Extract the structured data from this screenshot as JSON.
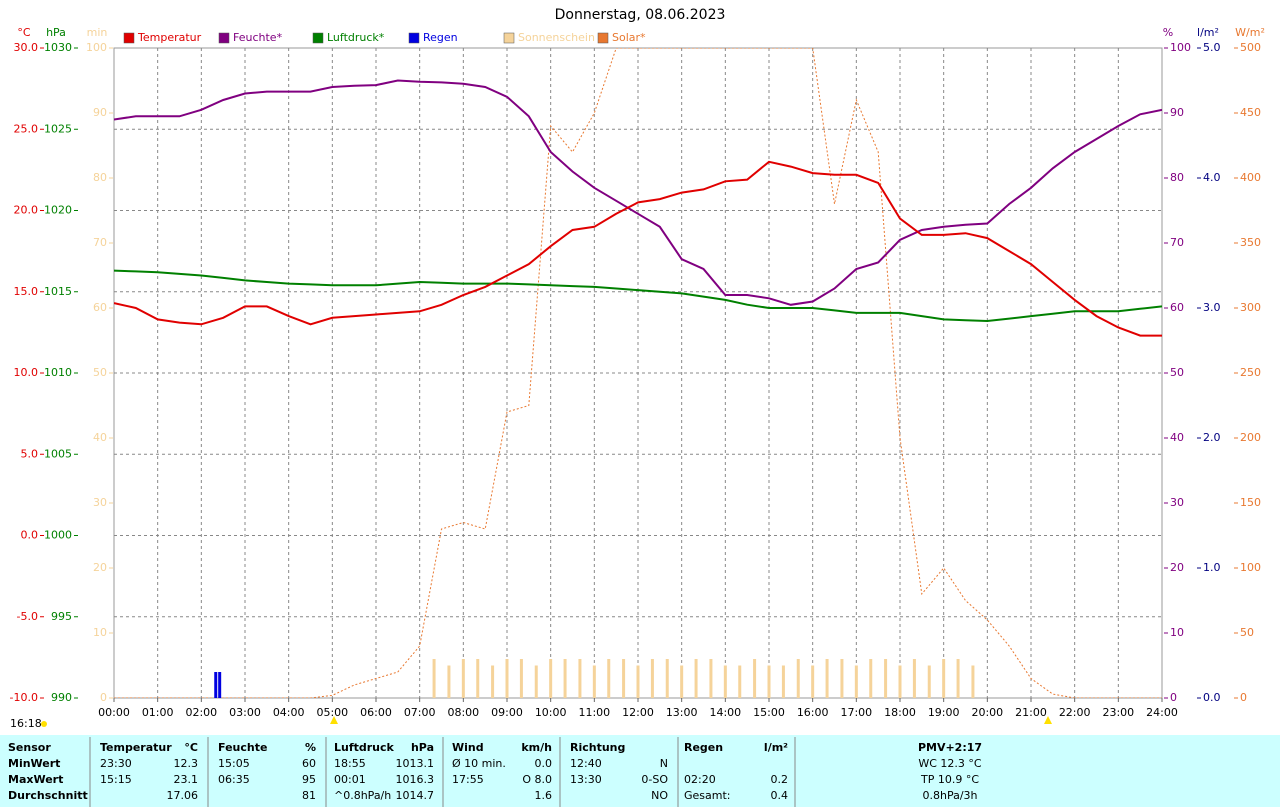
{
  "chart_data": {
    "type": "line",
    "title": "Donnerstag, 08.06.2023",
    "grid": true,
    "xlim": [
      0,
      24
    ],
    "xticks": [
      {
        "value": 0,
        "label": "00:00"
      },
      {
        "value": 1,
        "label": "01:00"
      },
      {
        "value": 2,
        "label": "02:00"
      },
      {
        "value": 3,
        "label": "03:00"
      },
      {
        "value": 4,
        "label": "04:00"
      },
      {
        "value": 5,
        "label": "05:00"
      },
      {
        "value": 6,
        "label": "06:00"
      },
      {
        "value": 7,
        "label": "07:00"
      },
      {
        "value": 8,
        "label": "08:00"
      },
      {
        "value": 9,
        "label": "09:00"
      },
      {
        "value": 10,
        "label": "10:00"
      },
      {
        "value": 11,
        "label": "11:00"
      },
      {
        "value": 12,
        "label": "12:00"
      },
      {
        "value": 13,
        "label": "13:00"
      },
      {
        "value": 14,
        "label": "14:00"
      },
      {
        "value": 15,
        "label": "15:00"
      },
      {
        "value": 16,
        "label": "16:00"
      },
      {
        "value": 17,
        "label": "17:00"
      },
      {
        "value": 18,
        "label": "18:00"
      },
      {
        "value": 19,
        "label": "19:00"
      },
      {
        "value": 20,
        "label": "20:00"
      },
      {
        "value": 21,
        "label": "21:00"
      },
      {
        "value": 22,
        "label": "22:00"
      },
      {
        "value": 23,
        "label": "23:00"
      },
      {
        "value": 24,
        "label": "24:00"
      }
    ],
    "axes": {
      "temp": {
        "unit": "°C",
        "color": "#e00000",
        "lim": [
          -10,
          30
        ],
        "ticks": [
          {
            "value": -10,
            "label": "-10.0"
          },
          {
            "value": -5,
            "label": "-5.0"
          },
          {
            "value": 0,
            "label": "0.0"
          },
          {
            "value": 5,
            "label": "5.0"
          },
          {
            "value": 10,
            "label": "10.0"
          },
          {
            "value": 15,
            "label": "15.0"
          },
          {
            "value": 20,
            "label": "20.0"
          },
          {
            "value": 25,
            "label": "25.0"
          },
          {
            "value": 30,
            "label": "30.0"
          }
        ]
      },
      "press": {
        "unit": "hPa",
        "color": "#008000",
        "lim": [
          990,
          1030
        ],
        "ticks": [
          990,
          995,
          1000,
          1005,
          1010,
          1015,
          1020,
          1025,
          1030
        ]
      },
      "sun": {
        "unit": "min",
        "color": "#f5d39a",
        "lim": [
          0,
          100
        ],
        "ticks": [
          0,
          10,
          20,
          30,
          40,
          50,
          60,
          70,
          80,
          90,
          100
        ]
      },
      "hum": {
        "unit": "%",
        "color": "#800080",
        "lim": [
          0,
          100
        ],
        "ticks": [
          0,
          10,
          20,
          30,
          40,
          50,
          60,
          70,
          80,
          90,
          100
        ]
      },
      "rain": {
        "unit": "l/m²",
        "color": "#000080",
        "lim": [
          0,
          5
        ],
        "ticks": [
          {
            "value": 0,
            "label": "0.0"
          },
          {
            "value": 1,
            "label": "1.0"
          },
          {
            "value": 2,
            "label": "2.0"
          },
          {
            "value": 3,
            "label": "3.0"
          },
          {
            "value": 4,
            "label": "4.0"
          },
          {
            "value": 5,
            "label": "5.0"
          }
        ]
      },
      "solar": {
        "unit": "W/m²",
        "color": "#e87830",
        "lim": [
          0,
          500
        ],
        "ticks": [
          0,
          50,
          100,
          150,
          200,
          250,
          300,
          350,
          400,
          450,
          500
        ]
      }
    },
    "series": [
      {
        "name": "Temperatur",
        "color": "#e00000",
        "axis": "temp",
        "type": "line",
        "x": [
          0,
          0.5,
          1,
          1.5,
          2,
          2.5,
          3,
          3.5,
          4,
          4.5,
          5,
          5.5,
          6,
          6.5,
          7,
          7.5,
          8,
          8.5,
          9,
          9.5,
          10,
          10.5,
          11,
          11.5,
          12,
          12.5,
          13,
          13.5,
          14,
          14.5,
          15,
          15.5,
          16,
          16.5,
          17,
          17.5,
          18,
          18.5,
          19,
          19.5,
          20,
          20.5,
          21,
          21.5,
          22,
          22.5,
          23,
          23.5,
          24
        ],
        "values": [
          14.3,
          14.0,
          13.3,
          13.1,
          13.0,
          13.4,
          14.1,
          14.1,
          13.5,
          13.0,
          13.4,
          13.5,
          13.6,
          13.7,
          13.8,
          14.2,
          14.8,
          15.3,
          16.0,
          16.7,
          17.8,
          18.8,
          19.0,
          19.8,
          20.5,
          20.7,
          21.1,
          21.3,
          21.8,
          21.9,
          23.0,
          22.7,
          22.3,
          22.2,
          22.2,
          21.7,
          19.5,
          18.5,
          18.5,
          18.6,
          18.3,
          17.5,
          16.7,
          15.6,
          14.5,
          13.5,
          12.8,
          12.3,
          12.3
        ]
      },
      {
        "name": "Feuchte*",
        "color": "#800080",
        "axis": "hum",
        "type": "line",
        "x": [
          0,
          0.5,
          1,
          1.5,
          2,
          2.5,
          3,
          3.5,
          4,
          4.5,
          5,
          5.5,
          6,
          6.5,
          7,
          7.5,
          8,
          8.5,
          9,
          9.5,
          10,
          10.5,
          11,
          11.5,
          12,
          12.5,
          13,
          13.5,
          14,
          14.5,
          15,
          15.5,
          16,
          16.5,
          17,
          17.5,
          18,
          18.5,
          19,
          19.5,
          20,
          20.5,
          21,
          21.5,
          22,
          22.5,
          23,
          23.5,
          24
        ],
        "values": [
          89,
          89.5,
          89.5,
          89.5,
          90.5,
          92,
          93,
          93.3,
          93.3,
          93.3,
          94,
          94.2,
          94.3,
          95,
          94.8,
          94.7,
          94.5,
          94,
          92.5,
          89.5,
          84,
          81,
          78.5,
          76.5,
          74.5,
          72.5,
          67.5,
          66,
          62,
          62,
          61.5,
          60.5,
          61,
          63,
          66,
          67,
          70.5,
          72,
          72.5,
          72.8,
          73,
          76,
          78.5,
          81.5,
          84,
          86,
          88,
          89.8,
          90.5
        ]
      },
      {
        "name": "Luftdruck*",
        "color": "#008000",
        "axis": "press",
        "type": "line",
        "x": [
          0,
          0.5,
          1,
          1.5,
          2,
          2.5,
          3,
          3.5,
          4,
          4.5,
          5,
          5.5,
          6,
          6.5,
          7,
          7.5,
          8,
          8.5,
          9,
          9.5,
          10,
          10.5,
          11,
          11.5,
          12,
          12.5,
          13,
          13.5,
          14,
          14.5,
          15,
          15.5,
          16,
          16.5,
          17,
          17.5,
          18,
          18.5,
          19,
          19.5,
          20,
          20.5,
          21,
          21.5,
          22,
          22.5,
          23,
          23.5,
          24
        ],
        "values": [
          1016.3,
          1016.25,
          1016.2,
          1016.1,
          1016.0,
          1015.85,
          1015.7,
          1015.6,
          1015.5,
          1015.45,
          1015.4,
          1015.4,
          1015.4,
          1015.5,
          1015.6,
          1015.55,
          1015.5,
          1015.5,
          1015.5,
          1015.45,
          1015.4,
          1015.35,
          1015.3,
          1015.2,
          1015.1,
          1015.0,
          1014.9,
          1014.7,
          1014.5,
          1014.2,
          1014.0,
          1014.0,
          1014.0,
          1013.85,
          1013.7,
          1013.7,
          1013.7,
          1013.5,
          1013.3,
          1013.25,
          1013.2,
          1013.35,
          1013.5,
          1013.65,
          1013.8,
          1013.8,
          1013.8,
          1013.95,
          1014.1
        ]
      },
      {
        "name": "Regen",
        "color": "#0000e0",
        "axis": "rain",
        "type": "bar",
        "x": [
          2.33,
          2.42
        ],
        "values": [
          0.2,
          0.2
        ]
      },
      {
        "name": "Sonnenschein",
        "color": "#f5d39a",
        "axis": "sun",
        "type": "bar",
        "x": [
          7.33,
          7.67,
          8,
          8.33,
          8.67,
          9,
          9.33,
          9.67,
          10,
          10.33,
          10.67,
          11,
          11.33,
          11.67,
          12,
          12.33,
          12.67,
          13,
          13.33,
          13.67,
          14,
          14.33,
          14.67,
          15,
          15.33,
          15.67,
          16,
          16.33,
          16.67,
          17,
          17.33,
          17.67,
          18,
          18.33,
          18.67,
          19,
          19.33,
          19.67
        ],
        "values": [
          6,
          5,
          6,
          6,
          5,
          6,
          6,
          5,
          6,
          6,
          6,
          5,
          6,
          6,
          5,
          6,
          6,
          5,
          6,
          6,
          5,
          5,
          6,
          5,
          5,
          6,
          5,
          6,
          6,
          5,
          6,
          6,
          5,
          6,
          5,
          6,
          6,
          5
        ]
      },
      {
        "name": "Solar*",
        "color": "#e87830",
        "axis": "solar",
        "type": "line",
        "dashed": true,
        "x": [
          0,
          0.5,
          1,
          1.5,
          2,
          2.5,
          3,
          3.5,
          4,
          4.5,
          5,
          5.5,
          6,
          6.5,
          7,
          7.5,
          8,
          8.5,
          9,
          9.5,
          10,
          10.5,
          11,
          11.5,
          12,
          12.5,
          13,
          13.5,
          14,
          14.5,
          15,
          15.5,
          16,
          16.5,
          17,
          17.5,
          18,
          18.5,
          19,
          19.5,
          20,
          20.5,
          21,
          21.5,
          22,
          22.5,
          23,
          23.5,
          24
        ],
        "values": [
          0,
          0,
          0,
          0,
          0,
          0,
          0,
          0,
          0,
          0,
          2,
          10,
          15,
          20,
          40,
          130,
          135,
          130,
          220,
          225,
          440,
          420,
          450,
          500,
          500,
          500,
          500,
          500,
          500,
          500,
          500,
          500,
          500,
          380,
          460,
          420,
          200,
          80,
          100,
          75,
          60,
          40,
          15,
          3,
          0,
          0,
          0,
          0,
          0
        ]
      }
    ]
  },
  "timestamp": "16:18",
  "table": {
    "rows": [
      [
        "Sensor",
        "Temperatur",
        "°C",
        "Feuchte",
        "%",
        "Luftdruck",
        "hPa",
        "Wind",
        "km/h",
        "Richtung",
        null,
        "Regen",
        "l/m²",
        "PMV+2:17"
      ],
      [
        "MinWert",
        "23:30",
        "12.3",
        "15:05",
        "60",
        "18:55",
        "1013.1",
        "Ø 10 min.",
        "0.0",
        "12:40",
        "N",
        null,
        null,
        "WC 12.3 °C"
      ],
      [
        "MaxWert",
        "15:15",
        "23.1",
        "06:35",
        "95",
        "00:01",
        "1016.3",
        "17:55",
        "O 8.0",
        "13:30",
        "0-SO",
        "02:20",
        "0.2",
        "TP 10.9 °C"
      ],
      [
        "Durchschnitt",
        null,
        "17.06",
        null,
        "81",
        "^0.8hPa/h",
        "1014.7",
        null,
        "1.6",
        null,
        "NO",
        "Gesamt:",
        "0.4",
        "0.8hPa/3h"
      ]
    ]
  }
}
